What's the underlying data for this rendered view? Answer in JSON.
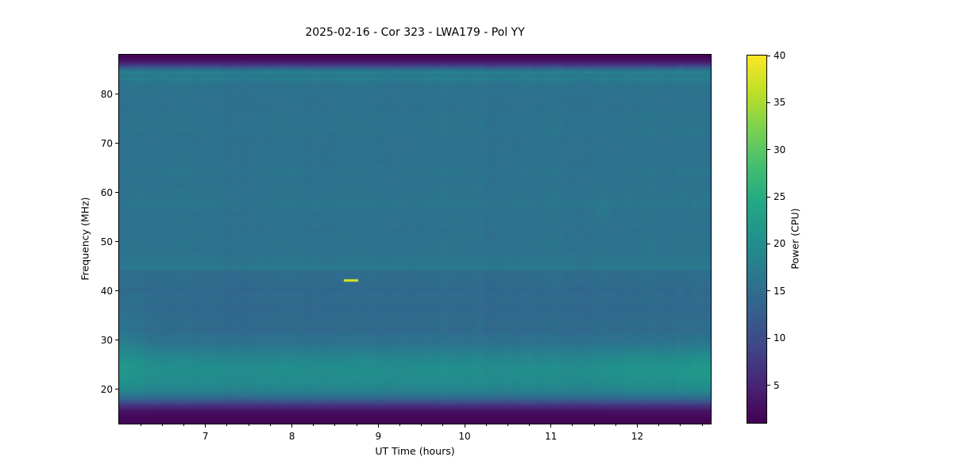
{
  "chart_data": {
    "type": "heatmap",
    "title": "2025-02-16 - Cor 323 - LWA179 - Pol YY",
    "xlabel": "UT Time (hours)",
    "ylabel": "Frequency (MHz)",
    "x_range": [
      6.0,
      12.85
    ],
    "y_range": [
      13.0,
      88.0
    ],
    "x_ticks": [
      7,
      8,
      9,
      10,
      11,
      12
    ],
    "x_minor_tick_step": 0.25,
    "y_ticks": [
      20,
      30,
      40,
      50,
      60,
      70,
      80
    ],
    "grid": false,
    "colorbar": {
      "label": "Power (CPU)",
      "vmin": 1.0,
      "vmax": 40.0,
      "ticks": [
        5,
        10,
        15,
        20,
        25,
        30,
        35,
        40
      ],
      "colormap": "viridis"
    },
    "colormap_stops": [
      [
        0.0,
        "#440154"
      ],
      [
        0.1,
        "#482475"
      ],
      [
        0.2,
        "#414487"
      ],
      [
        0.3,
        "#355f8d"
      ],
      [
        0.4,
        "#2a788e"
      ],
      [
        0.5,
        "#21918c"
      ],
      [
        0.6,
        "#22a884"
      ],
      [
        0.7,
        "#44bf70"
      ],
      [
        0.8,
        "#7ad151"
      ],
      [
        0.9,
        "#bddf26"
      ],
      [
        1.0,
        "#fde725"
      ]
    ],
    "freq_power_profile": [
      [
        13.0,
        1.2
      ],
      [
        14.5,
        1.8
      ],
      [
        15.5,
        3.0
      ],
      [
        16.3,
        5.5
      ],
      [
        17.2,
        9.5
      ],
      [
        18.0,
        13.5
      ],
      [
        18.8,
        16.5
      ],
      [
        19.5,
        18.0
      ],
      [
        21.0,
        19.3
      ],
      [
        23.0,
        20.3
      ],
      [
        25.0,
        19.8
      ],
      [
        26.5,
        18.8
      ],
      [
        28.0,
        17.0
      ],
      [
        29.5,
        15.6
      ],
      [
        31.0,
        14.8
      ],
      [
        33.0,
        14.5
      ],
      [
        36.0,
        14.3
      ],
      [
        39.0,
        14.4
      ],
      [
        41.5,
        14.6
      ],
      [
        43.5,
        14.9
      ],
      [
        44.2,
        15.1
      ],
      [
        44.6,
        17.0
      ],
      [
        45.2,
        16.6
      ],
      [
        46.0,
        16.2
      ],
      [
        48.0,
        15.9
      ],
      [
        50.0,
        15.9
      ],
      [
        52.0,
        15.7
      ],
      [
        54.0,
        15.7
      ],
      [
        56.0,
        15.9
      ],
      [
        58.0,
        16.0
      ],
      [
        60.0,
        16.1
      ],
      [
        62.0,
        15.8
      ],
      [
        64.0,
        15.9
      ],
      [
        66.0,
        15.8
      ],
      [
        68.0,
        15.6
      ],
      [
        70.0,
        15.6
      ],
      [
        72.0,
        15.8
      ],
      [
        74.0,
        15.9
      ],
      [
        76.0,
        15.7
      ],
      [
        78.0,
        15.5
      ],
      [
        80.0,
        15.5
      ],
      [
        81.5,
        15.8
      ],
      [
        82.5,
        16.2
      ],
      [
        83.3,
        17.5
      ],
      [
        83.9,
        16.5
      ],
      [
        84.4,
        18.5
      ],
      [
        84.9,
        16.0
      ],
      [
        85.3,
        13.0
      ],
      [
        85.8,
        9.0
      ],
      [
        86.3,
        5.5
      ],
      [
        87.0,
        2.5
      ],
      [
        88.0,
        1.2
      ]
    ],
    "features": {
      "rfi_burst": {
        "t_start": 8.6,
        "t_end": 8.77,
        "freq_mhz": 42.05,
        "half_height_mhz": 0.22,
        "power": 38.0
      },
      "faint_patch": {
        "t_center": 11.6,
        "t_sigma": 0.11,
        "freq_center": 56.5,
        "freq_sigma": 2.0,
        "boost": 0.9
      },
      "low_band_left_boost": {
        "t_center": 6.0,
        "t_sigma": 0.3,
        "freq_center": 28.0,
        "freq_sigma": 9.0,
        "amp": 2.0
      },
      "low_band_right_boost": [
        {
          "t_center": 12.9,
          "t_sigma": 0.75,
          "freq_center": 24.0,
          "freq_sigma": 5.5,
          "amp": 1.5
        },
        {
          "t_center": 11.85,
          "t_sigma": 0.35,
          "freq_center": 24.0,
          "freq_sigma": 5.5,
          "amp": 0.6
        }
      ]
    }
  }
}
